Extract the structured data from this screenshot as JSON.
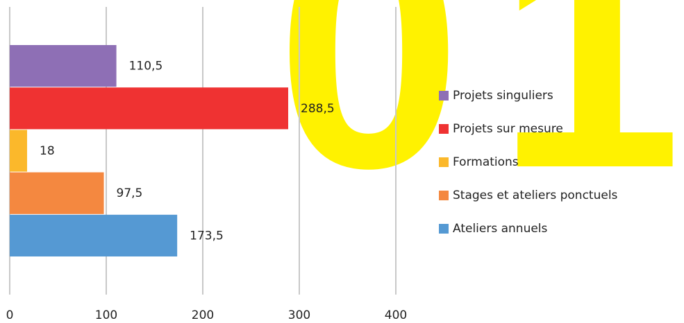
{
  "chart_data": {
    "type": "barh",
    "background_text": "01",
    "categories": [
      "Projets singuliers",
      "Projets sur mesure",
      "Formations",
      "Stages et ateliers ponctuels",
      "Ateliers annuels"
    ],
    "values": [
      110.5,
      288.5,
      18,
      97.5,
      173.5
    ],
    "value_labels": [
      "110,5",
      "288,5",
      "18",
      "97,5",
      "173,5"
    ],
    "colors": [
      "#8e6fb5",
      "#ef3232",
      "#fbb82b",
      "#f48840",
      "#5599d3"
    ],
    "xlim": [
      0,
      400
    ],
    "xticks": [
      0,
      100,
      200,
      300,
      400
    ],
    "grid": true,
    "legend": "right"
  }
}
